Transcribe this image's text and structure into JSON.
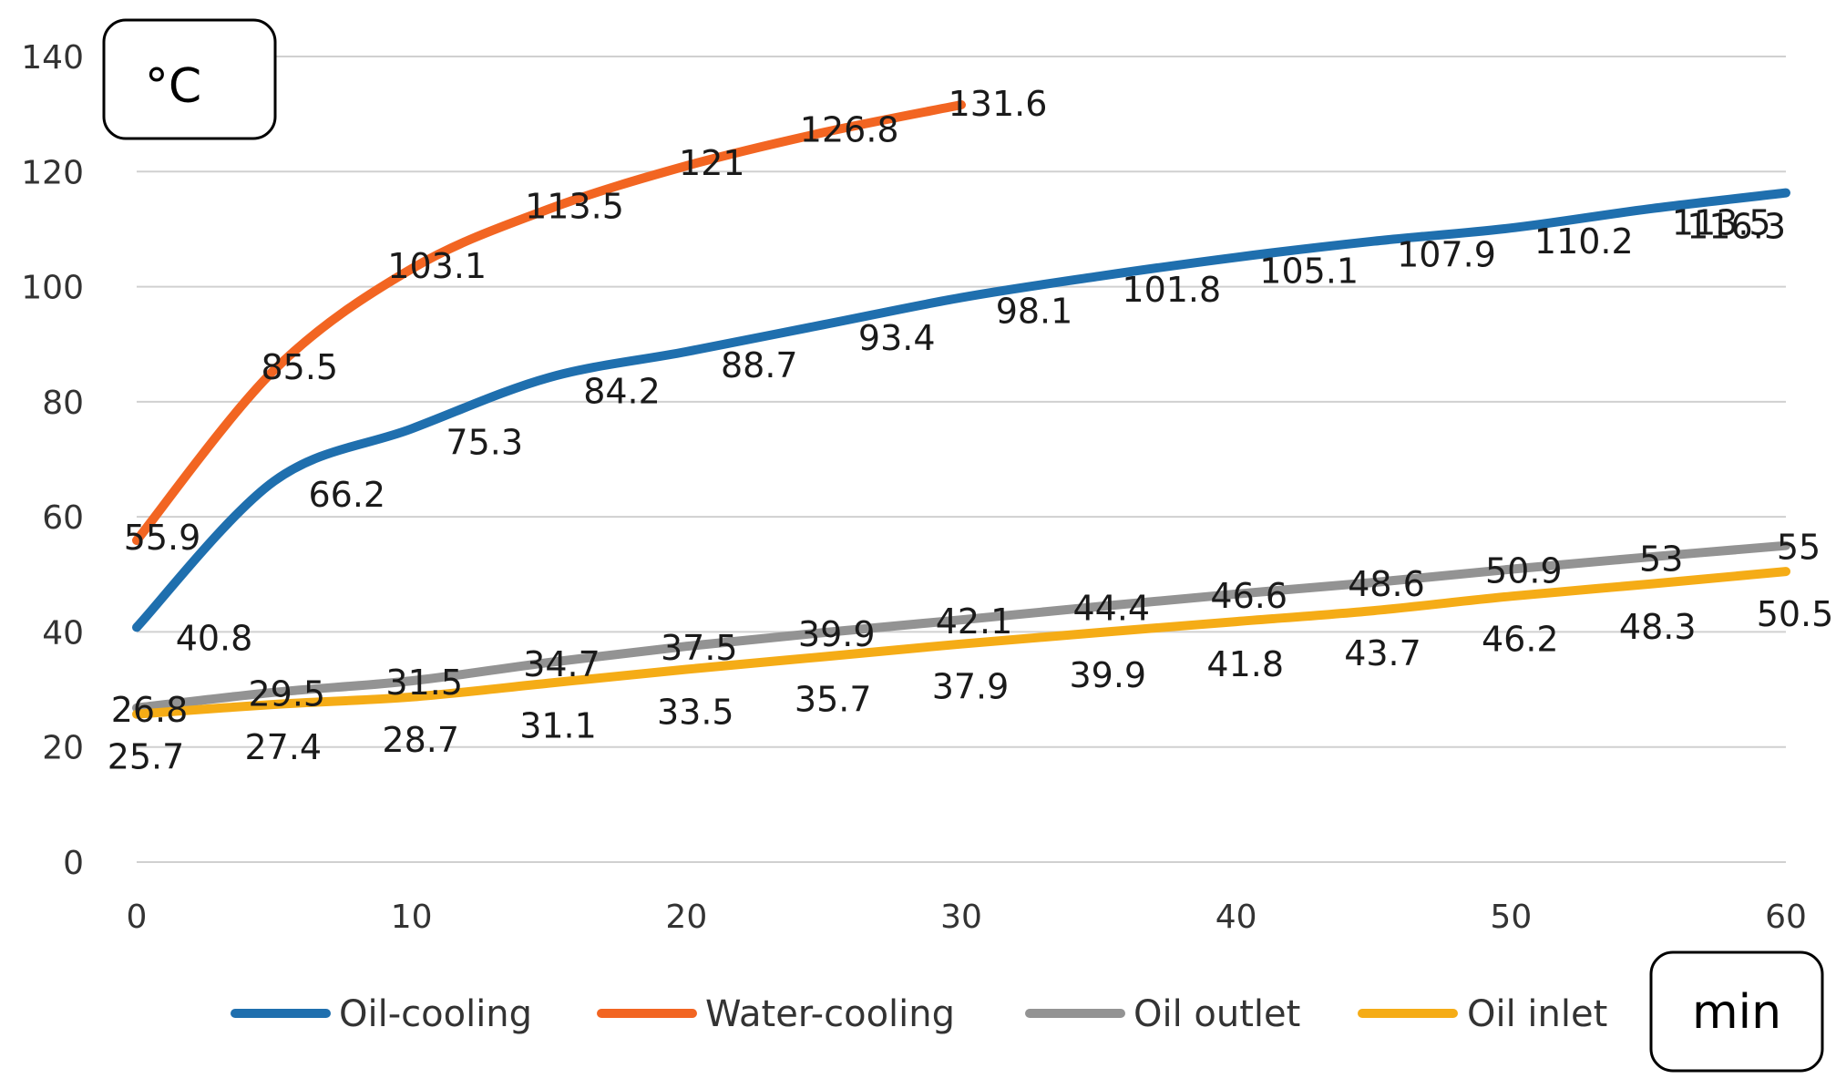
{
  "chart_data": {
    "type": "line",
    "title": "",
    "xlabel": "min",
    "ylabel": "°C",
    "xlim": [
      0,
      60
    ],
    "ylim": [
      0,
      140
    ],
    "x_ticks": [
      0,
      10,
      20,
      30,
      40,
      50,
      60
    ],
    "y_ticks": [
      0,
      20,
      40,
      60,
      80,
      100,
      120,
      140
    ],
    "grid": true,
    "legend_position": "bottom",
    "series": [
      {
        "name": "Oil-cooling",
        "color": "#1f6fae",
        "x": [
          0,
          5,
          10,
          15,
          20,
          25,
          30,
          35,
          40,
          45,
          50,
          55,
          60
        ],
        "values": [
          40.8,
          66.2,
          75.3,
          84.2,
          88.7,
          93.4,
          98.1,
          101.8,
          105.1,
          107.9,
          110.2,
          113.5,
          116.3
        ],
        "labels": [
          "40.8",
          "66.2",
          "75.3",
          "84.2",
          "88.7",
          "93.4",
          "98.1",
          "101.8",
          "105.1",
          "107.9",
          "110.2",
          "113.5",
          "116.3"
        ]
      },
      {
        "name": "Water-cooling",
        "color": "#f26522",
        "x": [
          0,
          5,
          10,
          15,
          20,
          25,
          30
        ],
        "values": [
          55.9,
          85.5,
          103.1,
          113.5,
          121,
          126.8,
          131.6
        ],
        "labels": [
          "55.9",
          "85.5",
          "103.1",
          "113.5",
          "121",
          "126.8",
          "131.6"
        ]
      },
      {
        "name": "Oil outlet",
        "color": "#939393",
        "x": [
          0,
          5,
          10,
          15,
          20,
          25,
          30,
          35,
          40,
          45,
          50,
          55,
          60
        ],
        "values": [
          26.8,
          29.5,
          31.5,
          34.7,
          37.5,
          39.9,
          42.1,
          44.4,
          46.6,
          48.6,
          50.9,
          53,
          55
        ],
        "labels": [
          "26.8",
          "29.5",
          "31.5",
          "34.7",
          "37.5",
          "39.9",
          "42.1",
          "44.4",
          "46.6",
          "48.6",
          "50.9",
          "53",
          "55"
        ]
      },
      {
        "name": "Oil inlet",
        "color": "#f5ac16",
        "x": [
          0,
          5,
          10,
          15,
          20,
          25,
          30,
          35,
          40,
          45,
          50,
          55,
          60
        ],
        "values": [
          25.7,
          27.4,
          28.7,
          31.1,
          33.5,
          35.7,
          37.9,
          39.9,
          41.8,
          43.7,
          46.2,
          48.3,
          50.5
        ],
        "labels": [
          "25.7",
          "27.4",
          "28.7",
          "31.1",
          "33.5",
          "35.7",
          "37.9",
          "39.9",
          "41.8",
          "43.7",
          "46.2",
          "48.3",
          "50.5"
        ]
      }
    ]
  }
}
